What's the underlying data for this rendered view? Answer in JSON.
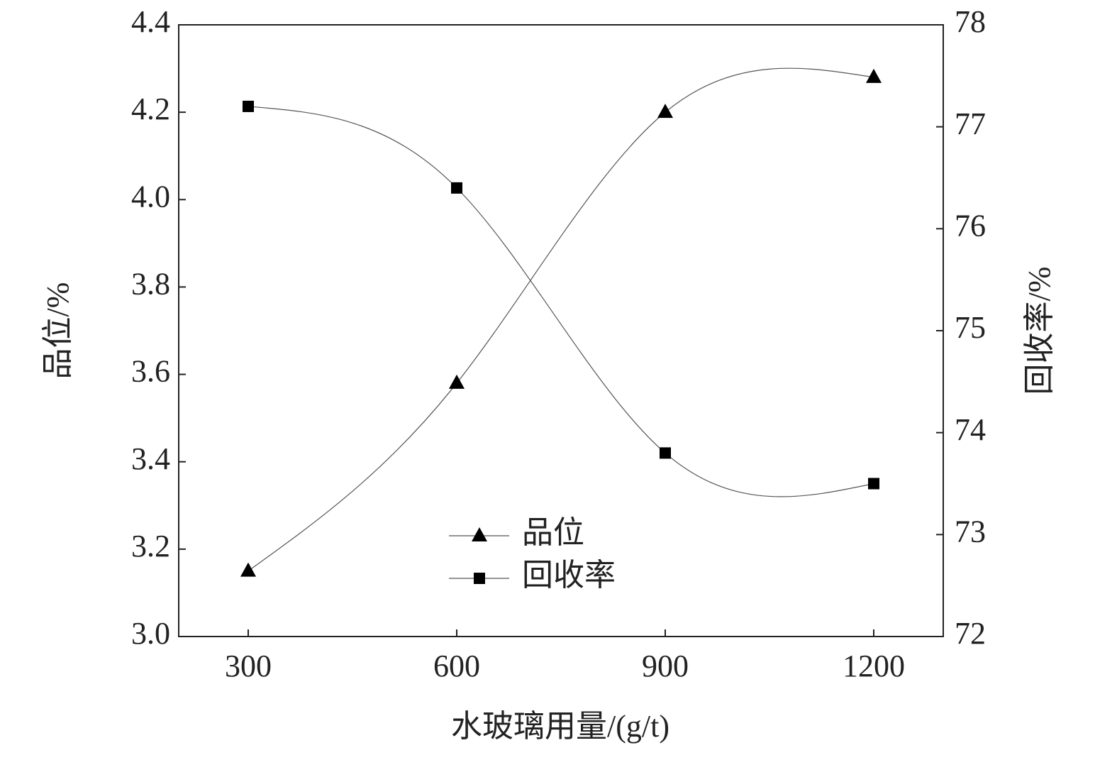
{
  "chart_data": {
    "type": "line",
    "x_label": "水玻璃用量/(g/t)",
    "y_label": "品位/%",
    "y2_label": "回收率/%",
    "x": [
      300,
      600,
      900,
      1200
    ],
    "xlim": [
      200,
      1300
    ],
    "xticks": [
      300,
      600,
      900,
      1200
    ],
    "ylim": [
      3.0,
      4.4
    ],
    "yticks": [
      {
        "value": 3.0,
        "label": "3.0"
      },
      3.2,
      3.4,
      3.6,
      3.8,
      {
        "value": 4.0,
        "label": "4.0"
      },
      4.2,
      4.4
    ],
    "y2lim": [
      72,
      78
    ],
    "y2ticks": [
      72,
      73,
      74,
      75,
      76,
      77,
      78
    ],
    "series": [
      {
        "name": "品位",
        "color": "#000000",
        "marker": "triangle",
        "values": [
          3.15,
          3.58,
          4.2,
          4.28
        ]
      },
      {
        "name": "回收率",
        "color": "#000000",
        "marker": "square",
        "axis": "y2",
        "values": [
          77.2,
          76.4,
          73.8,
          73.5
        ]
      }
    ]
  }
}
